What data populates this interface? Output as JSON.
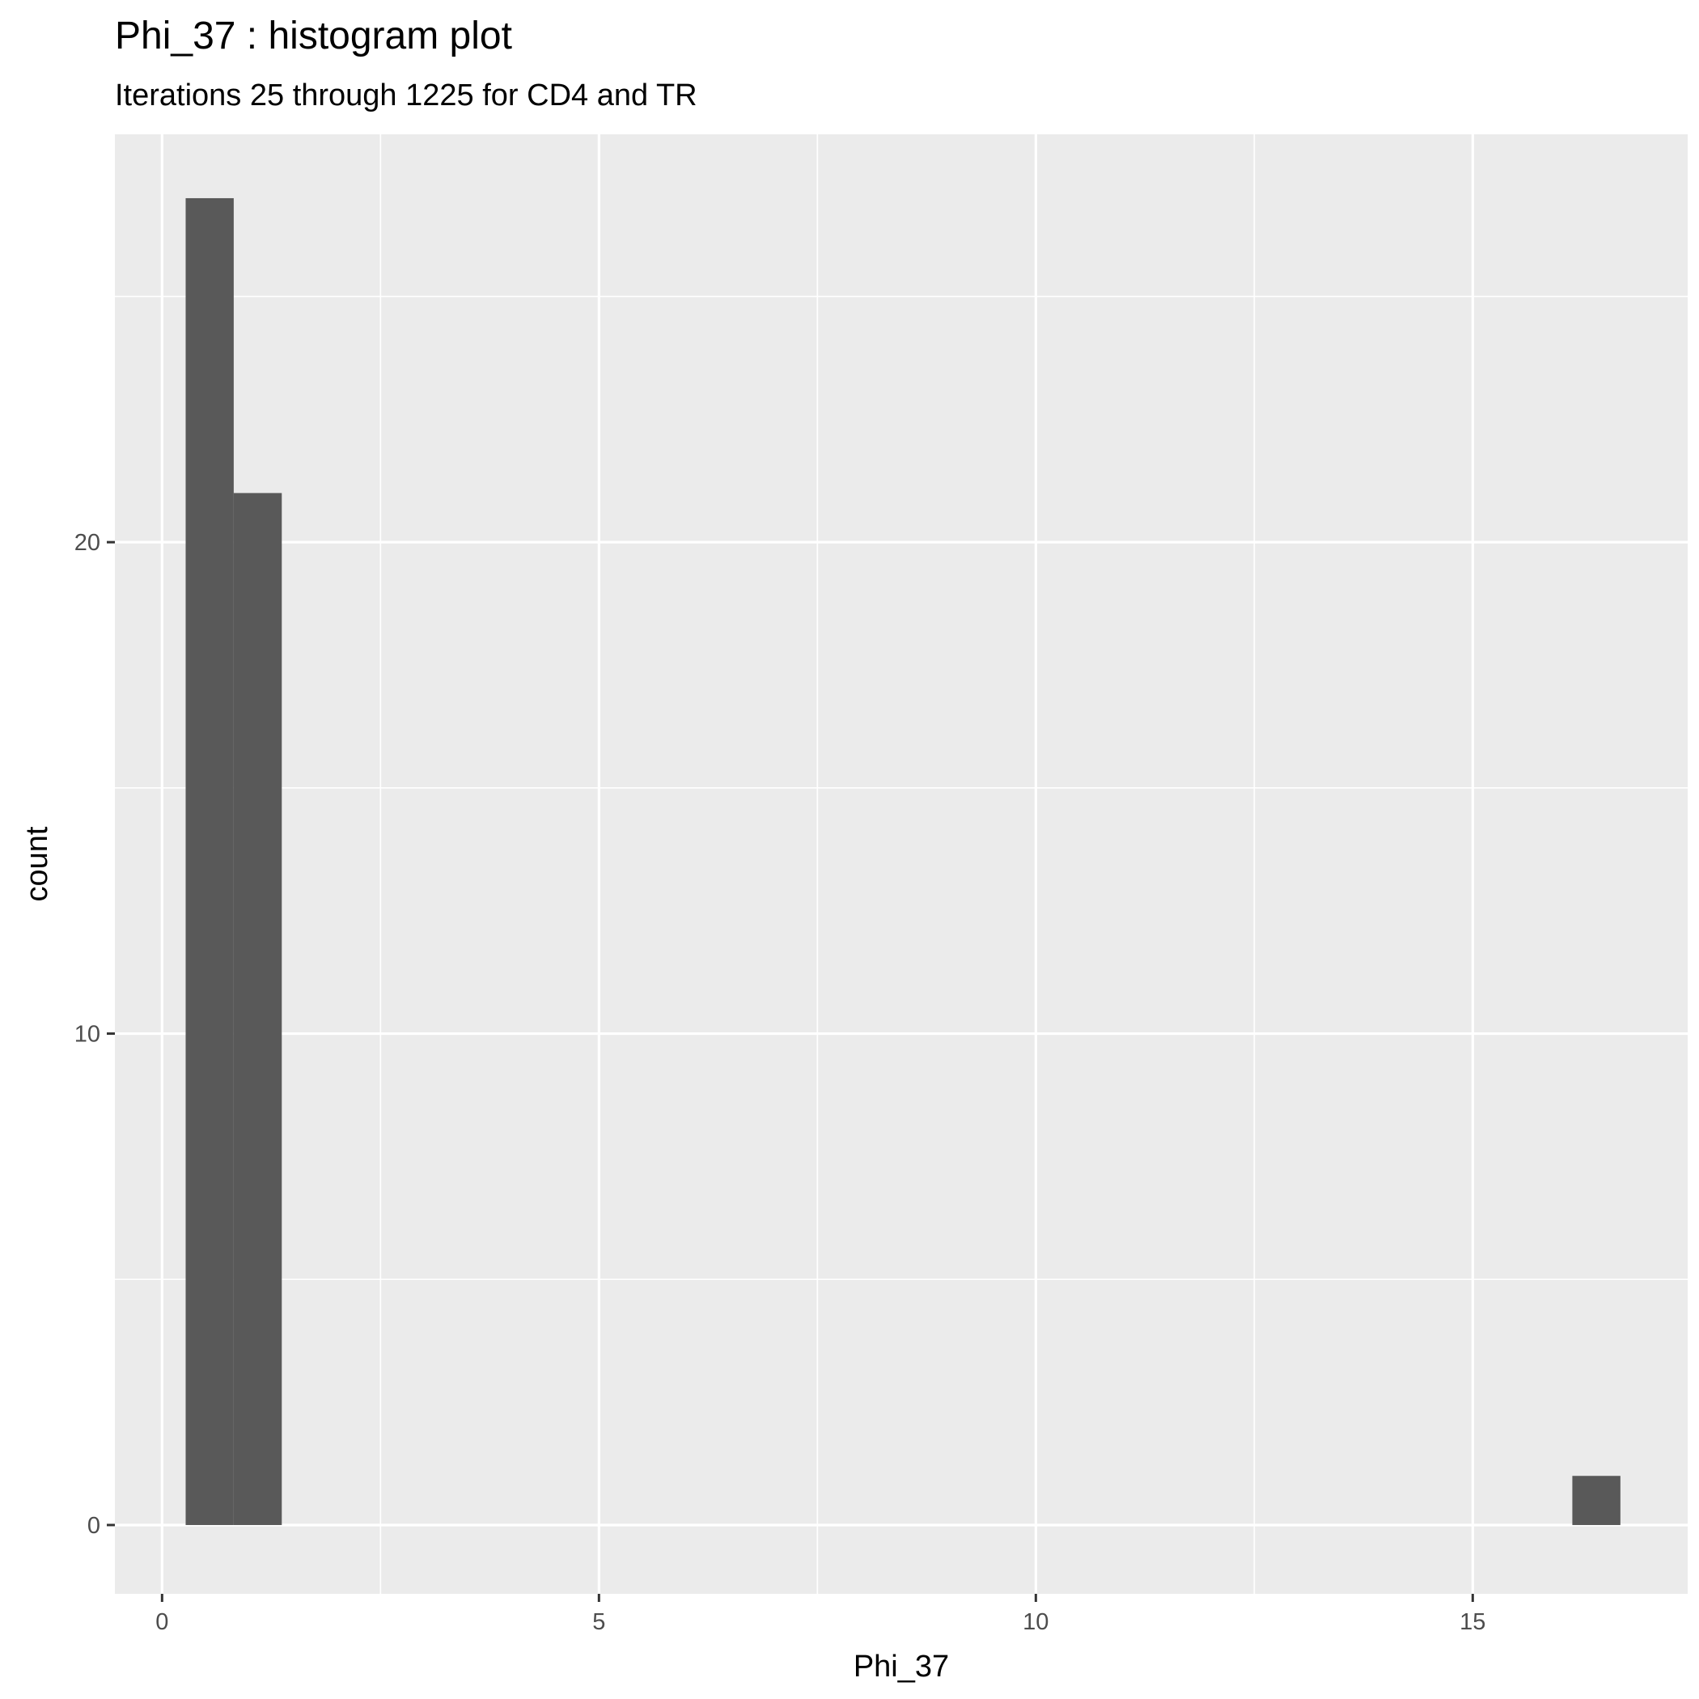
{
  "colors": {
    "panel_bg": "#ebebeb",
    "grid": "#ffffff",
    "bar_fill": "#595959",
    "tick": "#333333",
    "tick_label": "#4d4d4d"
  },
  "chart_data": {
    "type": "bar",
    "title": "Phi_37 : histogram plot",
    "subtitle": "Iterations 25 through 1225 for CD4 and TR",
    "xlabel": "Phi_37",
    "ylabel": "count",
    "xlim": [
      -0.54,
      17.46
    ],
    "ylim": [
      -1.4,
      28.3
    ],
    "x_ticks": [
      0,
      5,
      10,
      15
    ],
    "x_tick_labels": [
      "0",
      "5",
      "10",
      "15"
    ],
    "y_ticks": [
      0,
      10,
      20
    ],
    "y_tick_labels": [
      "0",
      "10",
      "20"
    ],
    "x_minor": [
      2.5,
      7.5,
      12.5
    ],
    "y_minor": [
      5,
      15,
      25
    ],
    "grid": true,
    "bins": [
      {
        "x0": 0.27,
        "x1": 0.82,
        "count": 27
      },
      {
        "x0": 0.82,
        "x1": 1.37,
        "count": 21
      },
      {
        "x0": 16.14,
        "x1": 16.69,
        "count": 1
      }
    ]
  }
}
